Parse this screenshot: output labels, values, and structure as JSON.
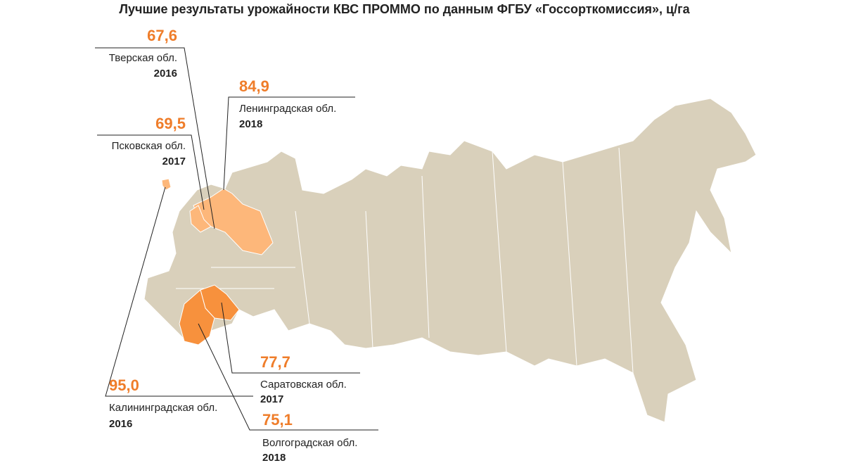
{
  "title": "Лучшие результаты урожайности КВС ПРОММО по данным ФГБУ «Госсорткомиссия», ц/га",
  "callouts": [
    {
      "value": "67,6",
      "region": "Тверская обл.",
      "year": "2016"
    },
    {
      "value": "84,9",
      "region": "Ленинградская обл.",
      "year": "2018"
    },
    {
      "value": "69,5",
      "region": "Псковская обл.",
      "year": "2017"
    },
    {
      "value": "95,0",
      "region": "Калининградская обл.",
      "year": "2016"
    },
    {
      "value": "77,7",
      "region": "Саратовская обл.",
      "year": "2017"
    },
    {
      "value": "75,1",
      "region": "Волгоградская обл.",
      "year": "2018"
    }
  ]
}
